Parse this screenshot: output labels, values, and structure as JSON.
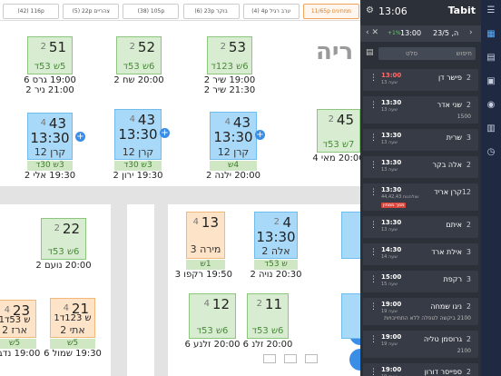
{
  "area_label": "ריה",
  "tabs": [
    "(42) 116p",
    "(5) 22p צהריים",
    "(38) 105p",
    "(6) 23p בוקר",
    "(4) 4p ערב רגיל",
    "11/65p ממתינים"
  ],
  "tables": [
    {
      "color": "green",
      "number": "51",
      "seats": "2",
      "info": "5ש 53ד",
      "lines": [
        "19:00 גרס 6",
        "21:00 ניר 2"
      ]
    },
    {
      "color": "green",
      "number": "52",
      "seats": "2",
      "info": "6ש 53ד",
      "lines": [
        "20:00 שח 2"
      ]
    },
    {
      "color": "green",
      "number": "53",
      "seats": "2",
      "info": "6ש 123ד",
      "lines": [
        "19:00 שיר 2",
        "21:30 שיר 2"
      ]
    },
    {
      "color": "blue",
      "number": "43",
      "seats": "4",
      "time": "13:30",
      "name": "קרן 12",
      "strip": "3ש 30ד",
      "lines": [
        "19:30 אלי 2"
      ]
    },
    {
      "color": "blue",
      "number": "43",
      "seats": "4",
      "time": "13:30",
      "name": "קרן 12",
      "strip": "3ש 30ד",
      "lines": [
        "19:30 ירון 2"
      ]
    },
    {
      "color": "blue",
      "number": "43",
      "seats": "4",
      "time": "13:30",
      "name": "קרן 12",
      "strip": "4ש",
      "lines": [
        "20:00 ילנה 2"
      ]
    },
    {
      "color": "green",
      "number": "45",
      "seats": "2",
      "info": "7ש 53ד",
      "lines": [
        "20:00 מאי 4"
      ]
    },
    {
      "color": "green",
      "number": "22",
      "seats": "2",
      "info": "6ש 53ד",
      "lines": [
        "20:00 נועם 2"
      ]
    },
    {
      "color": "orange",
      "number": "13",
      "seats": "4",
      "name": "מירה 3",
      "strip": "1ש",
      "lines": [
        "19:50 רקפו 3"
      ]
    },
    {
      "color": "blue",
      "number": "4",
      "seats": "2",
      "time": "13:30",
      "name": "אלה 2",
      "strip": "ש 53ד",
      "lines": [
        "20:30 נויה 2"
      ]
    },
    {
      "color": "green",
      "number": "12",
      "seats": "4",
      "info": "6ש 53ד",
      "lines": [
        "20:00 זלנע 6"
      ]
    },
    {
      "color": "green",
      "number": "11",
      "seats": "2",
      "info": "6ש 53ד",
      "lines": [
        "20:00 זלנ 6"
      ]
    },
    {
      "color": "orange",
      "number": "21",
      "seats": "4",
      "time": "1ש 123ד",
      "name": "אתי 2",
      "strip": "5ש",
      "lines": [
        "19:30 שמול 6"
      ]
    },
    {
      "color": "orange",
      "number": "23",
      "seats": "4",
      "time": "1ש 53ד",
      "name": "ארז 2",
      "strip": "5ש",
      "lines": [
        "19:00 נדב 4"
      ]
    }
  ],
  "panel": {
    "clock": "13:06",
    "brand": "Tabit",
    "occupancy": "+1%",
    "slot": "13:00",
    "date": "ה, 23/5",
    "search": "חיפוש",
    "filter": "סלט",
    "reservations": [
      {
        "time": "13:00",
        "late": true,
        "sub": "שעה 13",
        "name": "פישר דן",
        "party": "2"
      },
      {
        "time": "13:30",
        "sub": "שעה 13",
        "name": "שני אדר",
        "party": "2",
        "note": "1500"
      },
      {
        "time": "13:30",
        "sub": "שעה 13",
        "name": "שרית",
        "party": "3"
      },
      {
        "time": "13:30",
        "sub": "שעה 13",
        "name": "אלה בקר",
        "party": "2"
      },
      {
        "time": "13:30",
        "sub": "44,42,43 שולחנות",
        "name": "קרן אריד",
        "party": "12",
        "tag": "מסך ממתין"
      },
      {
        "time": "13:30",
        "sub": "שעה 13",
        "name": "איתם",
        "party": "2"
      },
      {
        "time": "14:30",
        "sub": "שעה 14",
        "name": "אילת ארד",
        "party": "3"
      },
      {
        "time": "15:00",
        "sub": "שעה 15",
        "name": "רקפת",
        "party": "3"
      },
      {
        "time": "19:00",
        "sub": "שעה 19",
        "name": "ניגו שמחה",
        "party": "2",
        "note": "2100 ביקשה לטפלה ללא התחייבויות"
      },
      {
        "time": "19:00",
        "sub": "שעה 19",
        "name": "גרוסמן טליה",
        "party": "2",
        "note": "2100"
      },
      {
        "time": "19:00",
        "sub": "שעה 19",
        "name": "ספייסר דורון",
        "party": "2"
      }
    ]
  }
}
